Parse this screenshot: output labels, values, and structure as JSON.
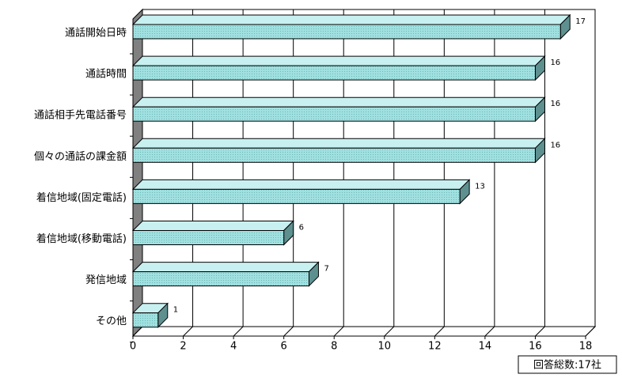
{
  "chart_data": {
    "type": "bar",
    "orientation": "horizontal",
    "categories": [
      "通話開始日時",
      "通話時間",
      "通話相手先電話番号",
      "個々の通話の課金額",
      "着信地域(固定電話)",
      "着信地域(移動電話)",
      "発信地域",
      "その他"
    ],
    "values": [
      17,
      16,
      16,
      16,
      13,
      6,
      7,
      1
    ],
    "color": "#a0e0e0",
    "xlim": [
      0,
      18
    ],
    "xticks": [
      0,
      2,
      4,
      6,
      8,
      10,
      12,
      14,
      16,
      18
    ],
    "grid": true,
    "annotation": "回答総数:17社"
  }
}
